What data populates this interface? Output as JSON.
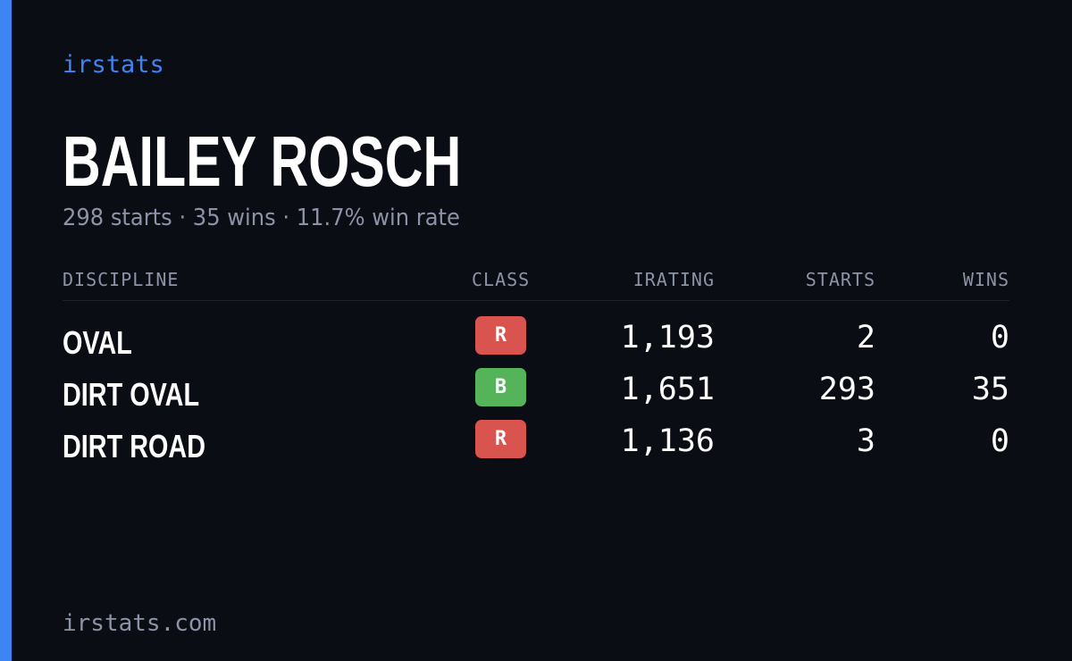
{
  "colors": {
    "background": "#0b0d14",
    "accent": "#3d84f5",
    "text_primary": "#ffffff",
    "text_muted": "#8d93a6",
    "divider": "#1f232e",
    "class_r": "#d9534f",
    "class_b": "#55b45a"
  },
  "header": {
    "brand": "irstats"
  },
  "profile": {
    "name": "BAILEY ROSCH",
    "summary": "298 starts · 35 wins · 11.7% win rate"
  },
  "table": {
    "columns": {
      "discipline": "DISCIPLINE",
      "class": "CLASS",
      "irating": "IRATING",
      "starts": "STARTS",
      "wins": "WINS"
    },
    "rows": [
      {
        "discipline": "OVAL",
        "class": "R",
        "class_color": "#d9534f",
        "irating": "1,193",
        "starts": "2",
        "wins": "0"
      },
      {
        "discipline": "DIRT OVAL",
        "class": "B",
        "class_color": "#55b45a",
        "irating": "1,651",
        "starts": "293",
        "wins": "35"
      },
      {
        "discipline": "DIRT ROAD",
        "class": "R",
        "class_color": "#d9534f",
        "irating": "1,136",
        "starts": "3",
        "wins": "0"
      }
    ]
  },
  "footer": {
    "site": "irstats.com"
  }
}
